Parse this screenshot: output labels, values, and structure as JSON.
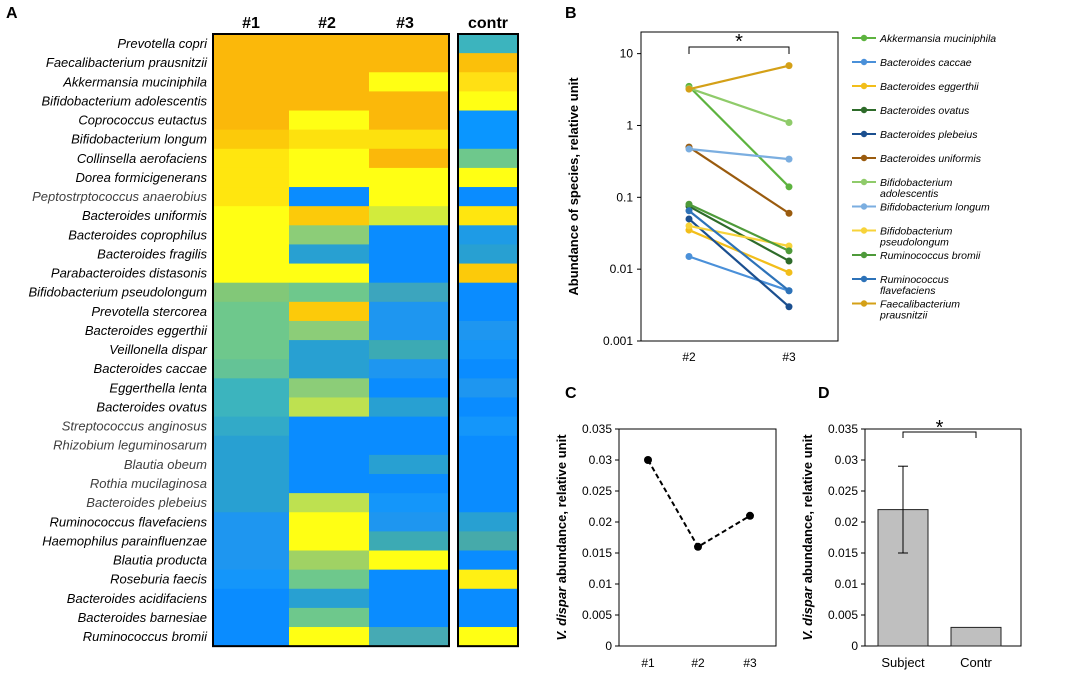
{
  "panel_labels": [
    "A",
    "B",
    "C",
    "D"
  ],
  "chart_data": [
    {
      "type": "heatmap",
      "panel": "A",
      "columns": [
        "#1",
        "#2",
        "#3"
      ],
      "control_column": "contr",
      "rows": [
        "Prevotella copri",
        "Faecalibacterium prausnitzii",
        "Akkermansia muciniphila",
        "Bifidobacterium adolescentis",
        "Coprococcus eutactus",
        "Bifidobacterium longum",
        "Collinsella aerofaciens",
        "Dorea formicigenerans",
        "Peptostrptococcus anaerobius",
        "Bacteroides uniformis",
        "Bacteroides coprophilus",
        "Bacteroides fragilis",
        "Parabacteroides distasonis",
        "Bifidobacterium pseudolongum",
        "Prevotella stercorea",
        "Bacteroides eggerthii",
        "Veillonella dispar",
        "Bacteroides caccae",
        "Eggerthella lenta",
        "Bacteroides ovatus",
        "Streptococcus anginosus",
        "Rhizobium leguminosarum",
        "Blautia obeum",
        "Rothia mucilaginosa",
        "Bacteroides plebeius",
        "Ruminococcus flavefaciens",
        "Haemophilus parainfluenzae",
        "Blautia producta",
        "Roseburia faecis",
        "Bacteroides acidifaciens",
        "Bacteroides barnesiae",
        "Ruminococcus bromii"
      ],
      "gray_rows": [
        8,
        20,
        21,
        22,
        23,
        24
      ],
      "colors": [
        [
          "#FBB80A",
          "#FBB80A",
          "#FBB80A",
          "#3CB4BE"
        ],
        [
          "#FBB80A",
          "#FBB80A",
          "#FBB80A",
          "#FBC00A"
        ],
        [
          "#FBB80A",
          "#FBB80A",
          "#FFFF14",
          "#FFE014"
        ],
        [
          "#FBB80A",
          "#FBB80A",
          "#FBB80A",
          "#FFFF14"
        ],
        [
          "#FBB80A",
          "#FFFF14",
          "#FBB80A",
          "#0A96FF"
        ],
        [
          "#FCCA0A",
          "#FDE10E",
          "#FDE10E",
          "#0A96FF"
        ],
        [
          "#FFE60F",
          "#FFFF14",
          "#FBB80A",
          "#6EC88C"
        ],
        [
          "#FFE60F",
          "#FFFF14",
          "#FFFF14",
          "#FFFF14"
        ],
        [
          "#FFE60F",
          "#0A8CFF",
          "#FFFF14",
          "#0A8CFF"
        ],
        [
          "#FFFF14",
          "#FCCA0A",
          "#D2EB3C",
          "#FFE60F"
        ],
        [
          "#FFFF14",
          "#8CCD78",
          "#0A8CFF",
          "#1E9BE6"
        ],
        [
          "#FFFF14",
          "#28A0D2",
          "#0A8CFF",
          "#28A0D2"
        ],
        [
          "#FFFF14",
          "#FFFF14",
          "#0A8CFF",
          "#FCCA0A"
        ],
        [
          "#82C878",
          "#6EC88C",
          "#3CA5BE",
          "#0A8CFF"
        ],
        [
          "#6EC88C",
          "#FCCA0A",
          "#1E96F0",
          "#0A8CFF"
        ],
        [
          "#6EC88C",
          "#8CCD78",
          "#1E96F0",
          "#1E96F0"
        ],
        [
          "#6EC88C",
          "#28A0D2",
          "#3CAAB4",
          "#1496FA"
        ],
        [
          "#64C396",
          "#28A0D2",
          "#1E96F0",
          "#0A8CFF"
        ],
        [
          "#3CB4BE",
          "#8CCD78",
          "#0A8CFF",
          "#1E96F0"
        ],
        [
          "#3CB4BE",
          "#BEE150",
          "#28A0D2",
          "#0A8CFF"
        ],
        [
          "#32AAC8",
          "#0A8CFF",
          "#0A8CFF",
          "#1496FA"
        ],
        [
          "#28A0D2",
          "#0A8CFF",
          "#0A8CFF",
          "#0A8CFF"
        ],
        [
          "#28A0D2",
          "#0A8CFF",
          "#28A0D2",
          "#0A8CFF"
        ],
        [
          "#28A0D2",
          "#0A8CFF",
          "#0A8CFF",
          "#0A8CFF"
        ],
        [
          "#28A0D2",
          "#BEE150",
          "#1496FA",
          "#0A8CFF"
        ],
        [
          "#1E96F0",
          "#FFFF14",
          "#1E96F0",
          "#28A0D2"
        ],
        [
          "#1E96F0",
          "#FFFF14",
          "#3CAAB4",
          "#46AAAA"
        ],
        [
          "#1E96F0",
          "#A0D264",
          "#FFFF14",
          "#0A8CFF"
        ],
        [
          "#1496FA",
          "#6EC88C",
          "#0A8CFF",
          "#FFF014"
        ],
        [
          "#0A8CFF",
          "#28A0D2",
          "#0A8CFF",
          "#0A8CFF"
        ],
        [
          "#0A8CFF",
          "#6EC88C",
          "#0A8CFF",
          "#0A8CFF"
        ],
        [
          "#0A8CFF",
          "#FFFF14",
          "#46AAB4",
          "#FFFF14"
        ]
      ]
    },
    {
      "type": "line",
      "panel": "B",
      "yscale": "log",
      "ylabel": "Abundance of species, relative unit",
      "categories": [
        "#2",
        "#3"
      ],
      "yticks": [
        10,
        1,
        0.1,
        0.01,
        0.001
      ],
      "ytick_labels": [
        "10",
        "1",
        "0.1",
        "0.01",
        "0.001"
      ],
      "ylim": [
        0.001,
        20
      ],
      "significance": "*",
      "series": [
        {
          "name": "Akkermansia muciniphila",
          "color": "#5DB33F",
          "values": [
            3.5,
            0.14
          ]
        },
        {
          "name": "Bacteroides caccae",
          "color": "#4A90D9",
          "values": [
            0.015,
            0.005
          ]
        },
        {
          "name": "Bacteroides eggerthii",
          "color": "#F2BE1A",
          "values": [
            0.035,
            0.009
          ]
        },
        {
          "name": "Bacteroides ovatus",
          "color": "#2E6B2A",
          "values": [
            0.075,
            0.013
          ]
        },
        {
          "name": "Bacteroides plebeius",
          "color": "#1B4F8F",
          "values": [
            0.05,
            0.003
          ]
        },
        {
          "name": "Bacteroides uniformis",
          "color": "#9A5B0E",
          "values": [
            0.5,
            0.06
          ]
        },
        {
          "name": "Bifidobacterium adolescentis",
          "color": "#8FCB6A",
          "values": [
            3.3,
            1.1
          ]
        },
        {
          "name": "Bifidobacterium longum",
          "color": "#7BAEE0",
          "values": [
            0.47,
            0.34
          ]
        },
        {
          "name": "Bifidobacterium pseudolongum",
          "color": "#F7D33A",
          "values": [
            0.04,
            0.021
          ]
        },
        {
          "name": "Ruminococcus bromii",
          "color": "#4E9A3A",
          "values": [
            0.08,
            0.018
          ]
        },
        {
          "name": "Ruminococcus flavefaciens",
          "color": "#2D72B8",
          "values": [
            0.065,
            0.005
          ]
        },
        {
          "name": "Faecalibacterium prausnitzii",
          "color": "#D4A017",
          "values": [
            3.2,
            6.8
          ]
        }
      ],
      "legend": [
        {
          "lines": [
            "Akkermansia muciniphila"
          ],
          "color": "#5DB33F"
        },
        {
          "lines": [
            "Bacteroides caccae"
          ],
          "color": "#4A90D9"
        },
        {
          "lines": [
            "Bacteroides eggerthii"
          ],
          "color": "#F2BE1A"
        },
        {
          "lines": [
            "Bacteroides ovatus"
          ],
          "color": "#2E6B2A"
        },
        {
          "lines": [
            "Bacteroides plebeius"
          ],
          "color": "#1B4F8F"
        },
        {
          "lines": [
            "Bacteroides uniformis"
          ],
          "color": "#9A5B0E"
        },
        {
          "lines": [
            "Bifidobacterium",
            "adolescentis"
          ],
          "color": "#8FCB6A"
        },
        {
          "lines": [
            "Bifidobacterium longum"
          ],
          "color": "#7BAEE0"
        },
        {
          "lines": [
            "Bifidobacterium",
            "pseudolongum"
          ],
          "color": "#F7D33A"
        },
        {
          "lines": [
            "Ruminococcus bromii"
          ],
          "color": "#4E9A3A"
        },
        {
          "lines": [
            "Ruminococcus",
            "flavefaciens"
          ],
          "color": "#2D72B8"
        },
        {
          "lines": [
            "Faecalibacterium",
            "prausnitzii"
          ],
          "color": "#D4A017"
        }
      ]
    },
    {
      "type": "line",
      "panel": "C",
      "categories": [
        "#1",
        "#2",
        "#3"
      ],
      "values": [
        0.03,
        0.016,
        0.021
      ],
      "ylim": [
        0,
        0.035
      ],
      "yticks": [
        0,
        0.005,
        0.01,
        0.015,
        0.02,
        0.025,
        0.03,
        0.035
      ],
      "ytick_labels": [
        "0",
        "0.005",
        "0.01",
        "0.015",
        "0.02",
        "0.025",
        "0.03",
        "0.035"
      ],
      "ylabel_italic": "V. dispar",
      "ylabel_rest": " abundance, relative unit",
      "line_style": "dashed"
    },
    {
      "type": "bar",
      "panel": "D",
      "categories": [
        "Subject",
        "Contr"
      ],
      "values": [
        0.022,
        0.003
      ],
      "errors": [
        0.007,
        0
      ],
      "ylim": [
        0,
        0.035
      ],
      "yticks": [
        0,
        0.005,
        0.01,
        0.015,
        0.02,
        0.025,
        0.03,
        0.035
      ],
      "ytick_labels": [
        "0",
        "0.005",
        "0.01",
        "0.015",
        "0.02",
        "0.025",
        "0.03",
        "0.035"
      ],
      "ylabel_italic": "V. dispar",
      "ylabel_rest": " abundance, relative unit",
      "significance": "*",
      "bar_color": "#BFBFBF"
    }
  ]
}
